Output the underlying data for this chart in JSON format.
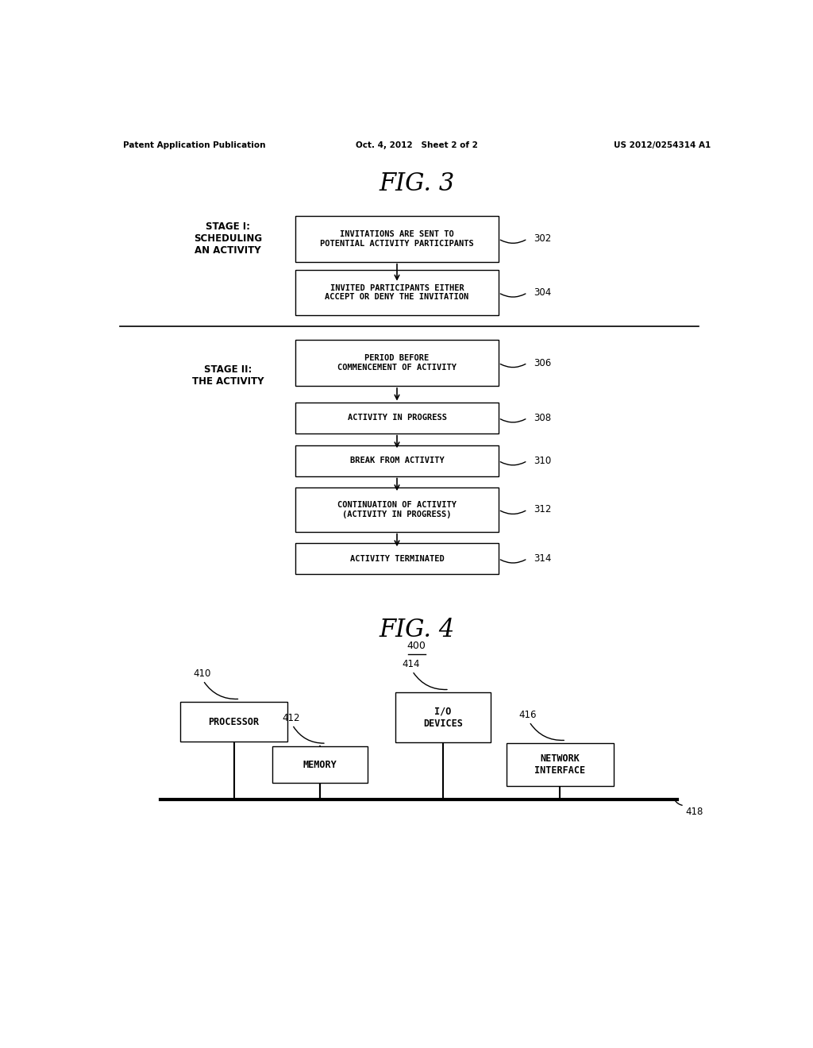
{
  "background_color": "#ffffff",
  "header": {
    "left": "Patent Application Publication",
    "center": "Oct. 4, 2012   Sheet 2 of 2",
    "right": "US 2012/0254314 A1"
  },
  "fig3": {
    "title": "FIG. 3",
    "stage1_label": "STAGE I:\nSCHEDULING\nAN ACTIVITY",
    "stage2_label": "STAGE II:\nTHE ACTIVITY",
    "boxes": [
      {
        "id": "302",
        "text": "INVITATIONS ARE SENT TO\nPOTENTIAL ACTIVITY PARTICIPANTS",
        "ref": "302"
      },
      {
        "id": "304",
        "text": "INVITED PARTICIPANTS EITHER\nACCEPT OR DENY THE INVITATION",
        "ref": "304"
      },
      {
        "id": "306",
        "text": "PERIOD BEFORE\nCOMMENCEMENT OF ACTIVITY",
        "ref": "306"
      },
      {
        "id": "308",
        "text": "ACTIVITY IN PROGRESS",
        "ref": "308"
      },
      {
        "id": "310",
        "text": "BREAK FROM ACTIVITY",
        "ref": "310"
      },
      {
        "id": "312",
        "text": "CONTINUATION OF ACTIVITY\n(ACTIVITY IN PROGRESS)",
        "ref": "312"
      },
      {
        "id": "314",
        "text": "ACTIVITY TERMINATED",
        "ref": "314"
      }
    ]
  },
  "fig4": {
    "title": "FIG. 4",
    "ref": "400",
    "nodes": [
      {
        "id": "processor",
        "label": "PROCESSOR",
        "ref": "410"
      },
      {
        "id": "io",
        "label": "I/O\nDEVICES",
        "ref": "414"
      },
      {
        "id": "memory",
        "label": "MEMORY",
        "ref": "412"
      },
      {
        "id": "network",
        "label": "NETWORK\nINTERFACE",
        "ref": "416"
      }
    ],
    "bus_ref": "418"
  }
}
